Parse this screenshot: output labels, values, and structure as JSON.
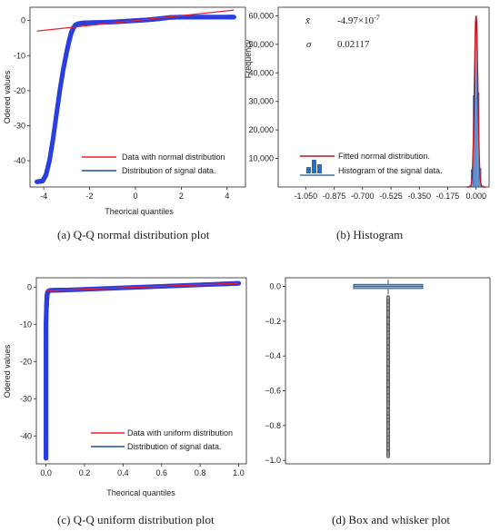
{
  "colors": {
    "qq_points": "#2a3fe0",
    "qq_line_normal": "#e8202a",
    "qq_line_uniform": "#e8202a",
    "legend_signal_line": "#1f4e9a",
    "hist_bars": "#7db3dd",
    "hist_edge": "#1f4e9a",
    "hist_fit": "#c0151b",
    "box_fill": "#8fb6d8",
    "box_edge": "#1f4e9a",
    "box_outlier": "#555555"
  },
  "chart_data": [
    {
      "type": "scatter",
      "panel": "a",
      "caption": "(a)  Q-Q normal distribution plot",
      "xlabel": "Theorical quantiles",
      "ylabel": "Odered values",
      "xlim": [
        -4.6,
        4.8
      ],
      "ylim": [
        -47.5,
        3.8
      ],
      "xticks": [
        -4,
        -2,
        0,
        2,
        4
      ],
      "yticks": [
        0,
        -10,
        -20,
        -30,
        -40
      ],
      "grid": false,
      "legend_position": "lower-right",
      "series": [
        {
          "name": "Data with normal  distribution",
          "kind": "line",
          "x": [
            -4.3,
            4.3
          ],
          "y": [
            -3.0,
            3.0
          ]
        },
        {
          "name": "Distribution of signal data.",
          "kind": "points",
          "x": [
            -4.3,
            -4.05,
            -3.9,
            -3.75,
            -3.6,
            -3.45,
            -3.3,
            -3.15,
            -3.0,
            -2.9,
            -2.8,
            -2.7,
            -2.6,
            -2.5,
            -2.3,
            -2.0,
            -1.5,
            -1.0,
            -0.5,
            0.0,
            0.5,
            1.0,
            1.5,
            2.0,
            2.5,
            3.0,
            3.5,
            4.0,
            4.3
          ],
          "y": [
            -46.0,
            -45.8,
            -44.0,
            -40.0,
            -34.0,
            -27.0,
            -20.0,
            -14.0,
            -9.0,
            -6.0,
            -3.5,
            -2.0,
            -1.2,
            -0.9,
            -0.7,
            -0.6,
            -0.5,
            -0.4,
            -0.2,
            0.0,
            0.2,
            0.5,
            0.9,
            1.0,
            1.0,
            1.0,
            1.0,
            1.0,
            1.0
          ]
        }
      ]
    },
    {
      "type": "bar",
      "panel": "b",
      "caption": "(b) Histogram",
      "xlabel": "",
      "ylabel": "Frequency",
      "xlim": [
        -1.22,
        0.08
      ],
      "ylim": [
        0,
        63000
      ],
      "xticks": [
        "-1.050",
        "-0.875",
        "-0.700",
        "-0.525",
        "-0.350",
        "-0.175",
        "0.000"
      ],
      "xtick_values": [
        -1.05,
        -0.875,
        -0.7,
        -0.525,
        -0.35,
        -0.175,
        0.0
      ],
      "yticks": [
        "10,000",
        "20,000",
        "30,000",
        "40,000",
        "50,000",
        "60,000"
      ],
      "ytick_values": [
        10000,
        20000,
        30000,
        40000,
        50000,
        60000
      ],
      "grid": false,
      "legend_position": "lower-left",
      "stats": {
        "mean_symbol": "x̄",
        "mean": "-4.97×10",
        "mean_exp": "-7",
        "sd_symbol": "σ",
        "sd": "0.02117"
      },
      "bins": [
        {
          "x": -0.036,
          "count": 400
        },
        {
          "x": -0.024,
          "count": 6000
        },
        {
          "x": -0.012,
          "count": 32000
        },
        {
          "x": 0.0,
          "count": 58000
        },
        {
          "x": 0.012,
          "count": 33000
        },
        {
          "x": 0.024,
          "count": 6500
        },
        {
          "x": 0.036,
          "count": 500
        }
      ],
      "series": [
        {
          "name": "Fitted normal distribution.",
          "kind": "curve",
          "mean": 0.0,
          "peak": 60000,
          "sd": 0.0105
        },
        {
          "name": "Histogram of the signal data.",
          "kind": "bars"
        }
      ]
    },
    {
      "type": "scatter",
      "panel": "c",
      "caption": "(c) Q-Q uniform distribution plot",
      "xlabel": "Theorical quantiles",
      "ylabel": "Odered values",
      "xlim": [
        -0.05,
        1.04
      ],
      "ylim": [
        -47.5,
        2.5
      ],
      "xticks": [
        0.0,
        0.2,
        0.4,
        0.6,
        0.8,
        1.0
      ],
      "xtick_labels": [
        "0.0",
        "0.2",
        "0.4",
        "0.6",
        "0.8",
        "1.0"
      ],
      "yticks": [
        0,
        -10,
        -20,
        -30,
        -40
      ],
      "grid": false,
      "legend_position": "lower-right",
      "series": [
        {
          "name": "Data with uniform distribution",
          "kind": "line",
          "x": [
            0.0,
            1.0
          ],
          "y": [
            -1.0,
            1.0
          ]
        },
        {
          "name": "Distribution of signal data.",
          "kind": "points",
          "x": [
            0.0,
            0.0,
            0.0,
            0.0,
            0.0,
            0.0,
            0.0,
            0.0,
            0.0,
            0.0,
            0.002,
            0.004,
            0.006,
            0.01,
            0.02,
            0.05,
            0.1,
            0.2,
            0.3,
            0.4,
            0.5,
            0.6,
            0.7,
            0.8,
            0.9,
            0.95,
            1.0
          ],
          "y": [
            -46.0,
            -42.0,
            -38.0,
            -34.0,
            -30.0,
            -26.0,
            -22.0,
            -18.0,
            -14.0,
            -10.0,
            -6.0,
            -3.5,
            -2.0,
            -1.2,
            -0.9,
            -0.85,
            -0.8,
            -0.6,
            -0.4,
            -0.2,
            0.0,
            0.2,
            0.4,
            0.6,
            0.8,
            0.9,
            1.0
          ]
        }
      ]
    },
    {
      "type": "box",
      "panel": "d",
      "caption": "(d) Box and whisker plot",
      "ylim": [
        -1.02,
        0.05
      ],
      "yticks": [
        0.0,
        -0.2,
        -0.4,
        -0.6,
        -0.8,
        -1.0
      ],
      "ytick_labels": [
        "0.0",
        "−0.2",
        "−0.4",
        "−0.6",
        "−0.8",
        "−1.0"
      ],
      "box": {
        "q1": -0.012,
        "median": 0.0,
        "q3": 0.012,
        "whisker_low": -0.045,
        "whisker_high": 0.04
      },
      "outliers_range": [
        -0.98,
        -0.06
      ]
    }
  ]
}
